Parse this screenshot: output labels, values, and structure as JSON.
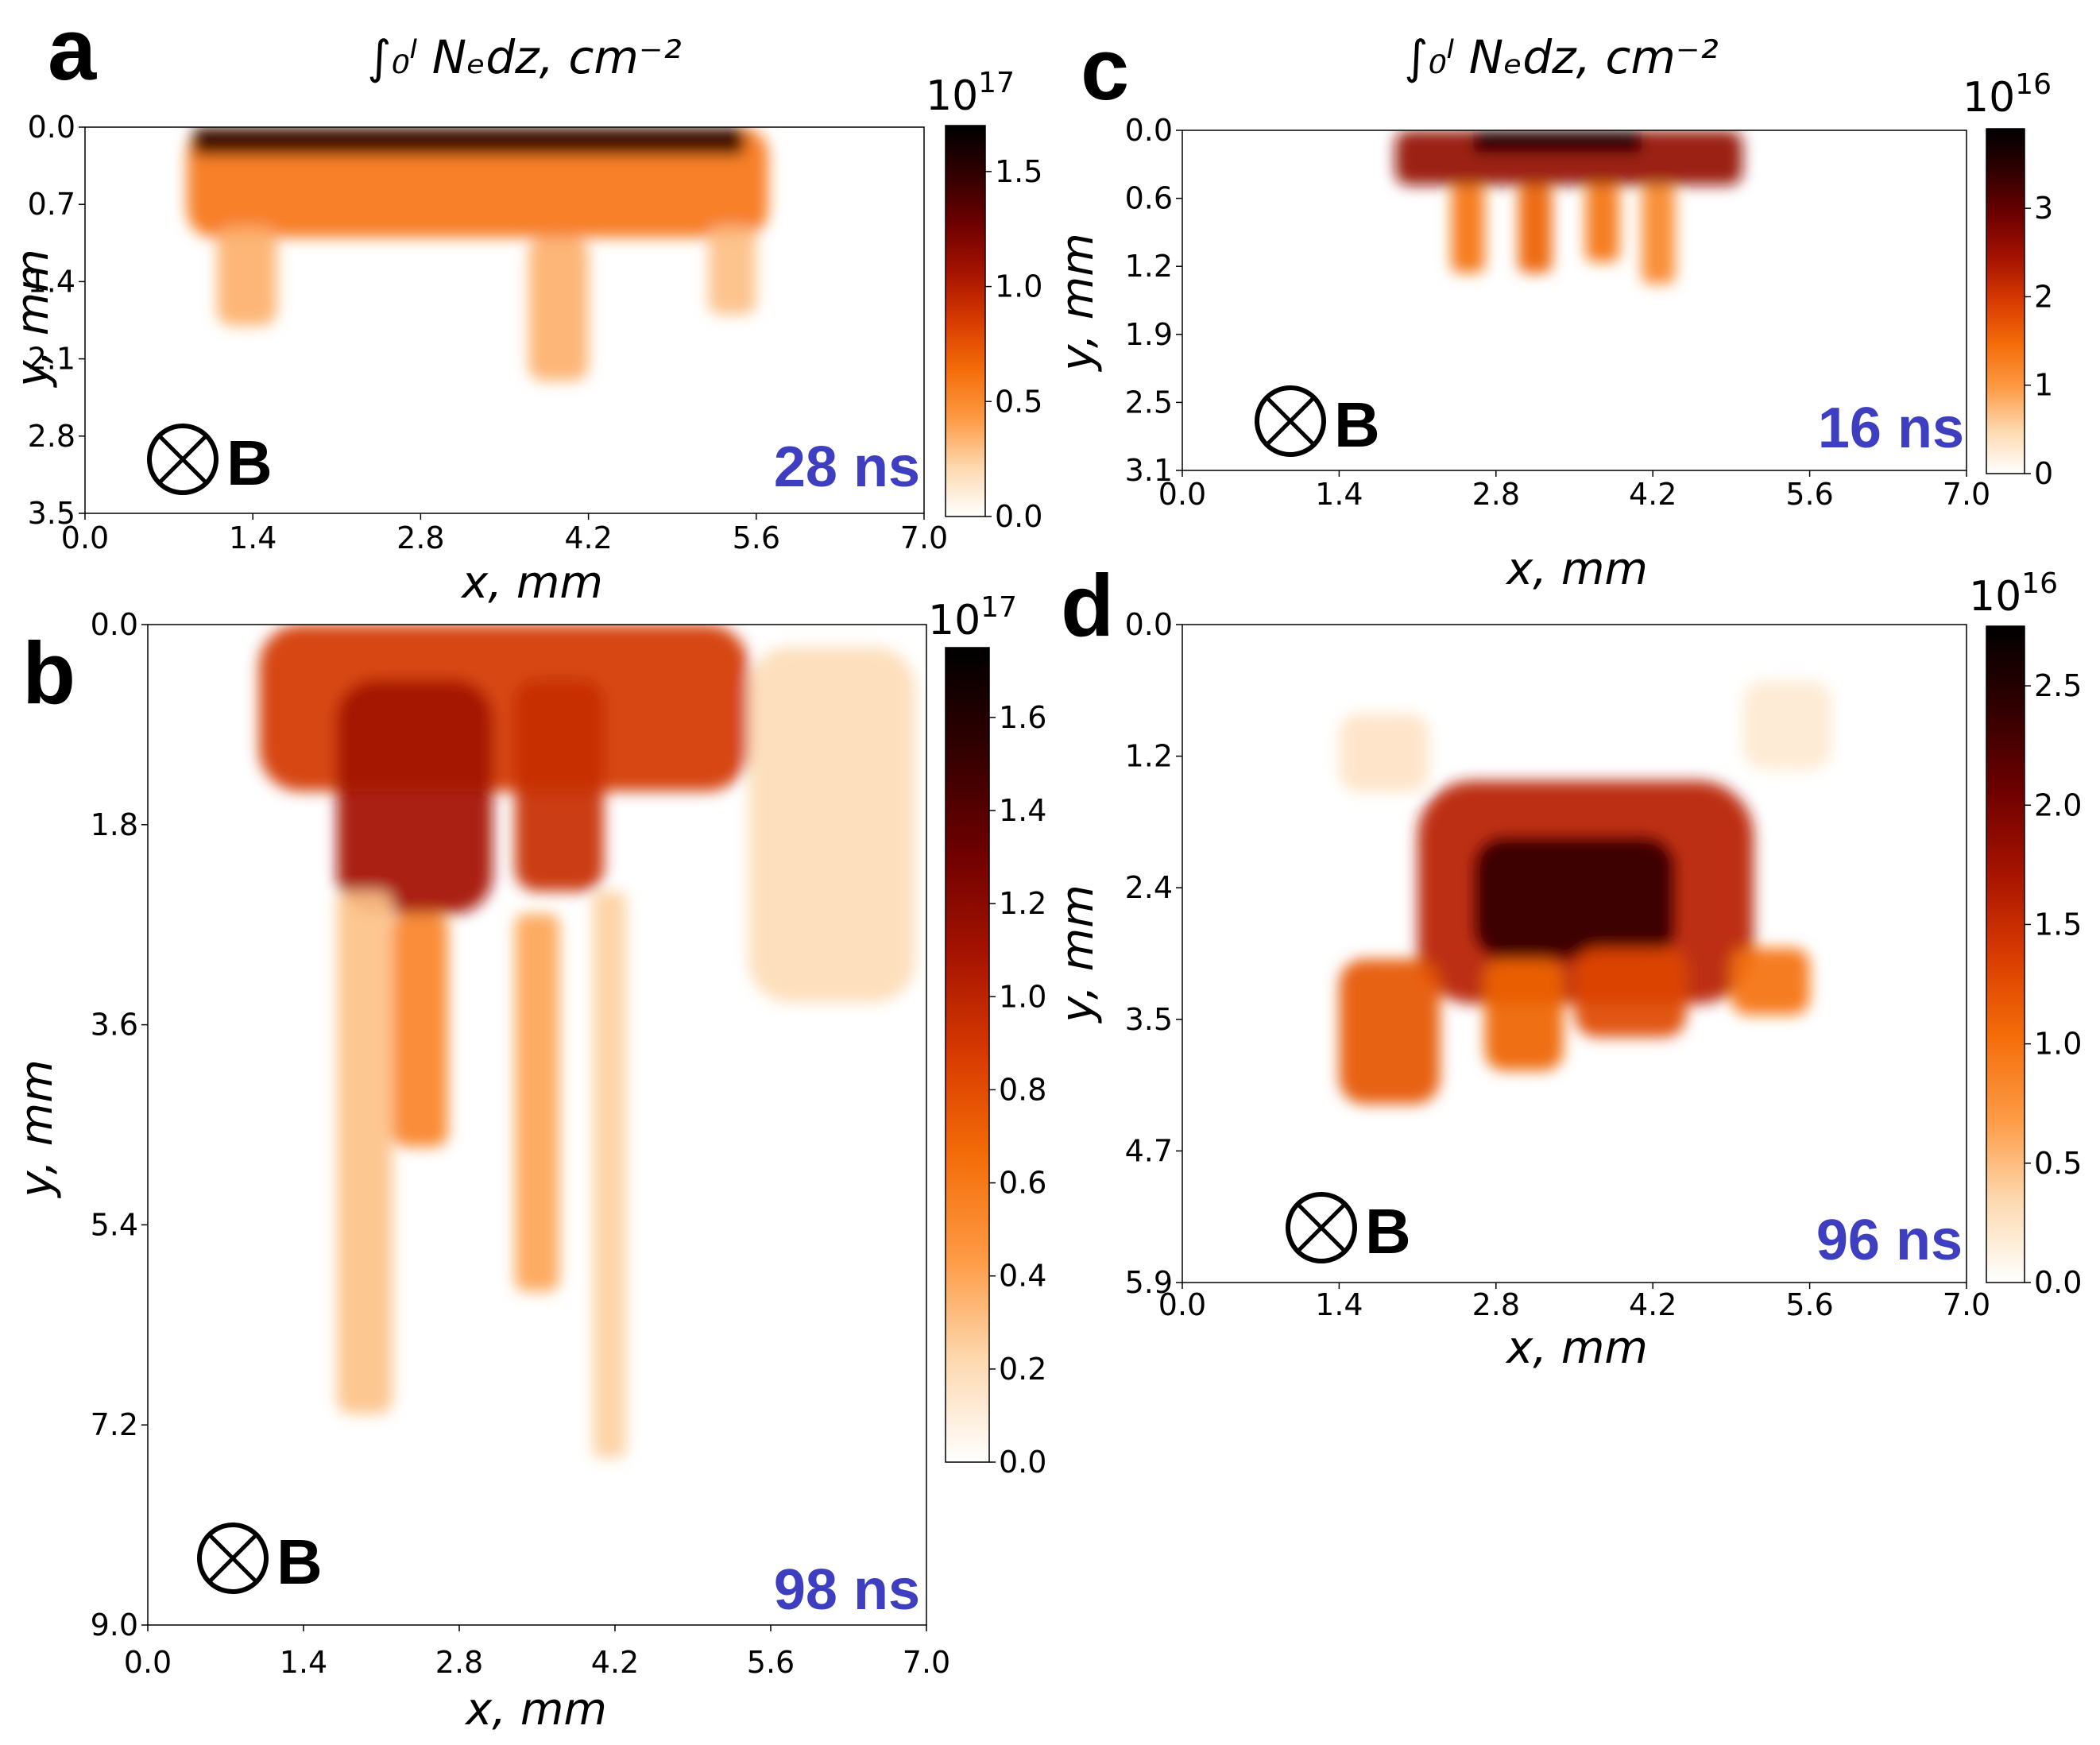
{
  "colors": {
    "time_label": "#3d3fc0",
    "colormap": [
      "#ffffff",
      "#fdd9b0",
      "#fd9a45",
      "#f46d09",
      "#d83b00",
      "#a51300",
      "#6e0000",
      "#320000",
      "#000000"
    ]
  },
  "chart_data": [
    {
      "panel": "a",
      "type": "heatmap",
      "title": "∫₀ˡ Nₑdz, cm⁻²",
      "xlabel": "x, mm",
      "ylabel": "y, mm",
      "xlim": [
        0.0,
        7.0
      ],
      "ylim": [
        3.5,
        0.0
      ],
      "xticks": [
        "0.0",
        "1.4",
        "2.8",
        "4.2",
        "5.6",
        "7.0"
      ],
      "yticks": [
        "0.0",
        "0.7",
        "1.4",
        "2.1",
        "2.8",
        "3.5"
      ],
      "colorbar": {
        "exponent": "10",
        "power": "17",
        "ticks": [
          "1.5",
          "1.0",
          "0.5",
          "0.0"
        ],
        "tick_values": [
          1.5,
          1.0,
          0.5,
          0.0
        ],
        "max": 1.7
      },
      "field_annotation": "B",
      "time": "28 ns",
      "regions": [
        {
          "x": [
            0.85,
            5.7
          ],
          "y": [
            0.0,
            1.0
          ],
          "value": 0.6
        },
        {
          "x": [
            0.9,
            5.5
          ],
          "y": [
            0.0,
            0.25
          ],
          "value": 1.5
        },
        {
          "x": [
            1.1,
            1.6
          ],
          "y": [
            0.9,
            1.8
          ],
          "value": 0.35
        },
        {
          "x": [
            3.7,
            4.2
          ],
          "y": [
            1.0,
            2.3
          ],
          "value": 0.35
        },
        {
          "x": [
            5.2,
            5.6
          ],
          "y": [
            0.9,
            1.7
          ],
          "value": 0.3
        }
      ]
    },
    {
      "panel": "b",
      "type": "heatmap",
      "title": "",
      "xlabel": "x, mm",
      "ylabel": "y, mm",
      "xlim": [
        0.0,
        7.0
      ],
      "ylim": [
        9.0,
        0.0
      ],
      "xticks": [
        "0.0",
        "1.4",
        "2.8",
        "4.2",
        "5.6",
        "7.0"
      ],
      "yticks": [
        "0.0",
        "1.8",
        "3.6",
        "5.4",
        "7.2",
        "9.0"
      ],
      "colorbar": {
        "exponent": "10",
        "power": "17",
        "ticks": [
          "1.6",
          "1.4",
          "1.2",
          "1.0",
          "0.8",
          "0.6",
          "0.4",
          "0.2",
          "0.0"
        ],
        "tick_values": [
          1.6,
          1.4,
          1.2,
          1.0,
          0.8,
          0.6,
          0.4,
          0.2,
          0.0
        ],
        "max": 1.75
      },
      "field_annotation": "B",
      "time": "98 ns",
      "regions": [
        {
          "x": [
            1.0,
            5.4
          ],
          "y": [
            0.0,
            1.5
          ],
          "value": 0.9
        },
        {
          "x": [
            1.7,
            3.1
          ],
          "y": [
            0.5,
            2.6
          ],
          "value": 1.1
        },
        {
          "x": [
            3.3,
            4.1
          ],
          "y": [
            0.5,
            2.4
          ],
          "value": 0.95
        },
        {
          "x": [
            1.7,
            2.2
          ],
          "y": [
            2.4,
            7.1
          ],
          "value": 0.3
        },
        {
          "x": [
            2.2,
            2.7
          ],
          "y": [
            2.6,
            4.7
          ],
          "value": 0.55
        },
        {
          "x": [
            3.3,
            3.7
          ],
          "y": [
            2.6,
            6.0
          ],
          "value": 0.4
        },
        {
          "x": [
            4.0,
            4.3
          ],
          "y": [
            2.4,
            7.5
          ],
          "value": 0.25
        },
        {
          "x": [
            5.4,
            6.9
          ],
          "y": [
            0.2,
            3.4
          ],
          "value": 0.2
        }
      ]
    },
    {
      "panel": "c",
      "type": "heatmap",
      "title": "∫₀ˡ Nₑdz, cm⁻²",
      "xlabel": "x, mm",
      "ylabel": "y, mm",
      "xlim": [
        0.0,
        7.0
      ],
      "ylim": [
        3.1,
        0.0
      ],
      "xticks": [
        "0.0",
        "1.4",
        "2.8",
        "4.2",
        "5.6",
        "7.0"
      ],
      "yticks": [
        "0.0",
        "0.6",
        "1.2",
        "1.9",
        "2.5",
        "3.1"
      ],
      "colorbar": {
        "exponent": "10",
        "power": "16",
        "ticks": [
          "3",
          "2",
          "1",
          "0"
        ],
        "tick_values": [
          3,
          2,
          1,
          0
        ],
        "max": 3.9
      },
      "field_annotation": "B",
      "time": "16 ns",
      "regions": [
        {
          "x": [
            1.9,
            5.0
          ],
          "y": [
            0.0,
            0.5
          ],
          "value": 2.6
        },
        {
          "x": [
            2.6,
            4.1
          ],
          "y": [
            0.0,
            0.2
          ],
          "value": 3.6
        },
        {
          "x": [
            2.4,
            2.7
          ],
          "y": [
            0.5,
            1.3
          ],
          "value": 1.4
        },
        {
          "x": [
            3.0,
            3.3
          ],
          "y": [
            0.5,
            1.3
          ],
          "value": 1.6
        },
        {
          "x": [
            3.6,
            3.9
          ],
          "y": [
            0.5,
            1.2
          ],
          "value": 1.4
        },
        {
          "x": [
            4.1,
            4.4
          ],
          "y": [
            0.5,
            1.4
          ],
          "value": 1.2
        }
      ]
    },
    {
      "panel": "d",
      "type": "heatmap",
      "title": "",
      "xlabel": "x, mm",
      "ylabel": "y, mm",
      "xlim": [
        0.0,
        7.0
      ],
      "ylim": [
        5.9,
        0.0
      ],
      "xticks": [
        "0.0",
        "1.4",
        "2.8",
        "4.2",
        "5.6",
        "7.0"
      ],
      "yticks": [
        "0.0",
        "1.2",
        "2.4",
        "3.5",
        "4.7",
        "5.9"
      ],
      "colorbar": {
        "exponent": "10",
        "power": "16",
        "ticks": [
          "2.5",
          "2.0",
          "1.5",
          "1.0",
          "0.5",
          "0.0"
        ],
        "tick_values": [
          2.5,
          2.0,
          1.5,
          1.0,
          0.5,
          0.0
        ],
        "max": 2.75
      },
      "field_annotation": "B",
      "time": "96 ns",
      "regions": [
        {
          "x": [
            2.1,
            5.1
          ],
          "y": [
            1.4,
            3.4
          ],
          "value": 1.6
        },
        {
          "x": [
            2.6,
            4.4
          ],
          "y": [
            1.9,
            3.0
          ],
          "value": 2.4
        },
        {
          "x": [
            1.4,
            2.3
          ],
          "y": [
            3.0,
            4.3
          ],
          "value": 1.2
        },
        {
          "x": [
            2.7,
            3.4
          ],
          "y": [
            3.0,
            4.0
          ],
          "value": 1.1
        },
        {
          "x": [
            3.5,
            4.5
          ],
          "y": [
            2.9,
            3.7
          ],
          "value": 1.3
        },
        {
          "x": [
            4.9,
            5.6
          ],
          "y": [
            2.9,
            3.5
          ],
          "value": 1.0
        },
        {
          "x": [
            1.4,
            2.2
          ],
          "y": [
            0.8,
            1.5
          ],
          "value": 0.25
        },
        {
          "x": [
            5.0,
            5.8
          ],
          "y": [
            0.5,
            1.3
          ],
          "value": 0.2
        }
      ]
    }
  ]
}
